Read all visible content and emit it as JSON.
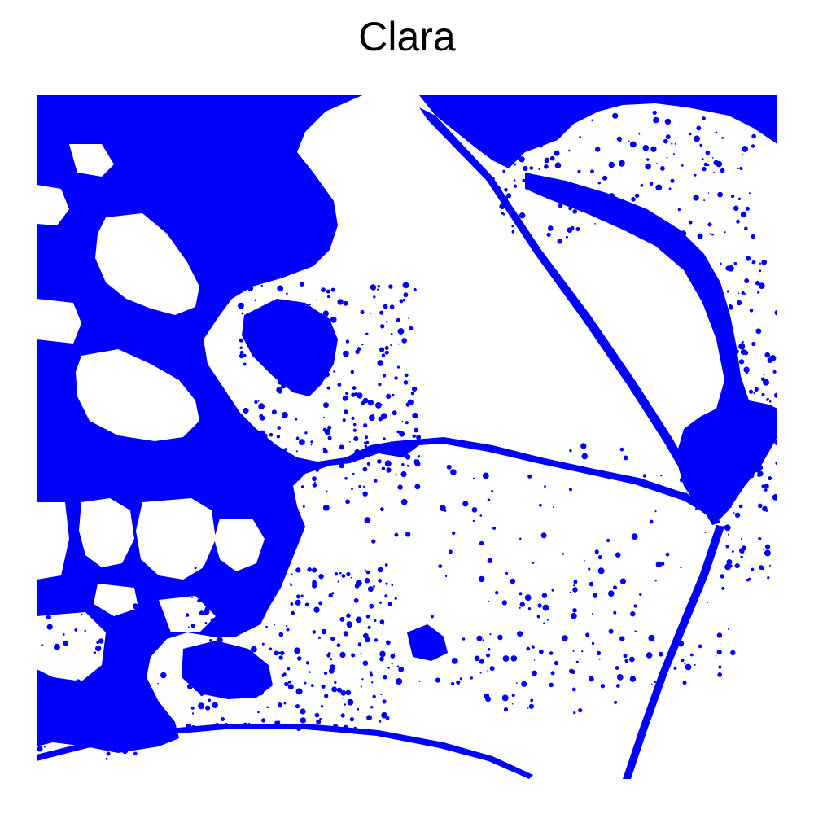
{
  "title": "Clara",
  "colors": {
    "mask": "#0000ff",
    "background": "#ffffff"
  }
}
